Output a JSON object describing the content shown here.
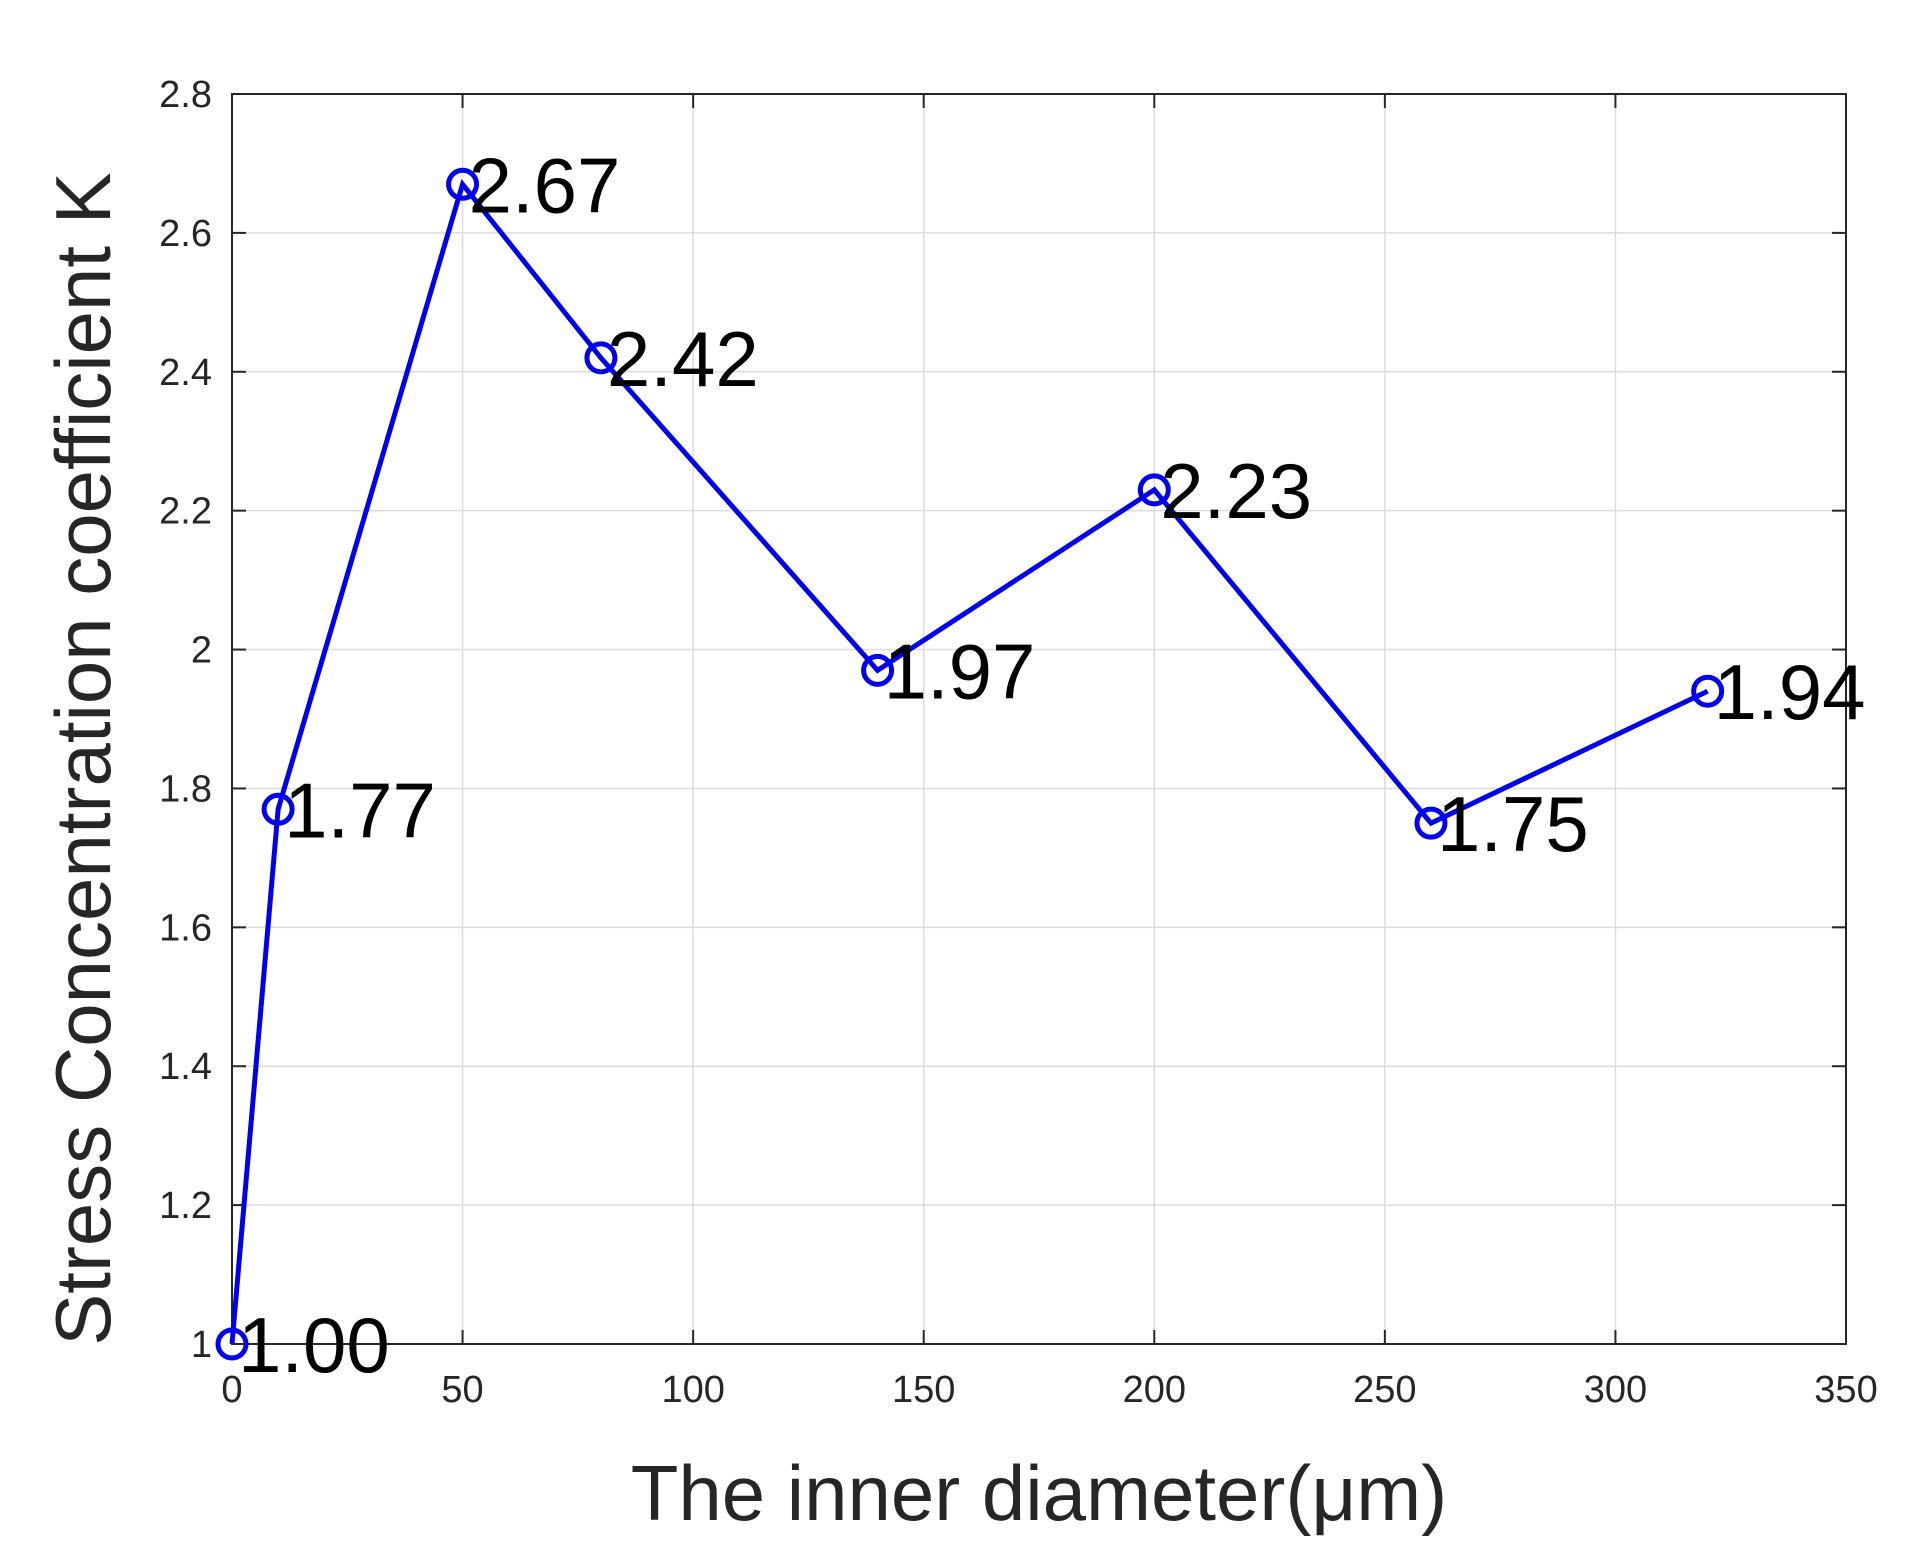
{
  "chart_data": {
    "type": "line",
    "title": "",
    "xlabel": "The inner diameter(μm)",
    "ylabel": "Stress Concentration coefficient K",
    "xlim": [
      0,
      350
    ],
    "ylim": [
      1,
      2.8
    ],
    "xticks": [
      0,
      50,
      100,
      150,
      200,
      250,
      300,
      350
    ],
    "yticks": [
      1,
      1.2,
      1.4,
      1.6,
      1.8,
      2,
      2.2,
      2.4,
      2.6,
      2.8
    ],
    "xtick_labels": [
      "0",
      "50",
      "100",
      "150",
      "200",
      "250",
      "300",
      "350"
    ],
    "ytick_labels": [
      "1",
      "1.2",
      "1.4",
      "1.6",
      "1.8",
      "2",
      "2.2",
      "2.4",
      "2.6",
      "2.8"
    ],
    "grid": true,
    "series": [
      {
        "x": [
          0,
          10,
          50,
          80,
          140,
          200,
          260,
          320
        ],
        "y": [
          1.0,
          1.77,
          2.67,
          2.42,
          1.97,
          2.23,
          1.75,
          1.94
        ],
        "data_labels": [
          "1.00",
          "1.77",
          "2.67",
          "2.42",
          "1.97",
          "2.23",
          "1.75",
          "1.94"
        ],
        "color": "#0000ee",
        "marker": "open-circle"
      }
    ]
  }
}
